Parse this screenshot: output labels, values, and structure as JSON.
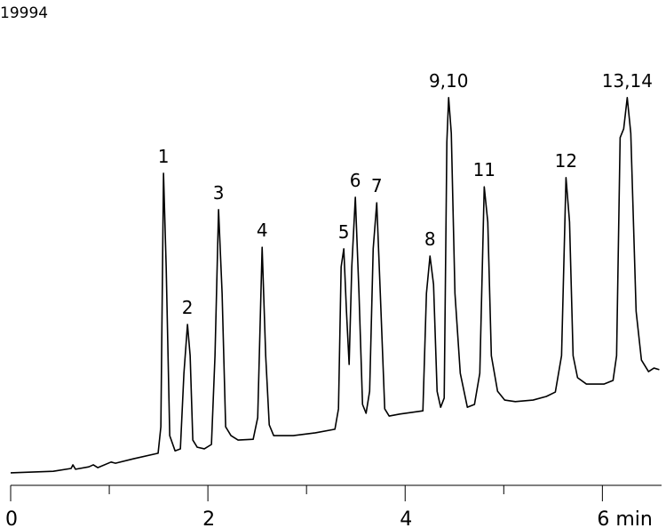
{
  "id_label": "19994",
  "chart_data": {
    "type": "line",
    "x": [
      0.0,
      0.432,
      0.613,
      0.631,
      0.658,
      0.793,
      0.838,
      0.883,
      1.018,
      1.063,
      1.243,
      1.495,
      1.523,
      1.55,
      1.577,
      1.613,
      1.667,
      1.721,
      1.757,
      1.793,
      1.82,
      1.847,
      1.892,
      1.964,
      2.036,
      2.072,
      2.108,
      2.144,
      2.18,
      2.234,
      2.306,
      2.459,
      2.505,
      2.55,
      2.586,
      2.622,
      2.667,
      2.865,
      3.09,
      3.288,
      3.324,
      3.351,
      3.378,
      3.405,
      3.432,
      3.459,
      3.495,
      3.532,
      3.568,
      3.604,
      3.64,
      3.676,
      3.712,
      3.748,
      3.793,
      3.838,
      3.946,
      4.18,
      4.216,
      4.252,
      4.288,
      4.324,
      4.36,
      4.396,
      4.423,
      4.441,
      4.468,
      4.505,
      4.559,
      4.631,
      4.703,
      4.757,
      4.802,
      4.838,
      4.874,
      4.937,
      5.009,
      5.117,
      5.297,
      5.432,
      5.523,
      5.586,
      5.631,
      5.667,
      5.703,
      5.748,
      5.838,
      6.018,
      6.108,
      6.144,
      6.18,
      6.216,
      6.252,
      6.288,
      6.342,
      6.396,
      6.468,
      6.523,
      6.577
    ],
    "series": [
      {
        "color": "#000000",
        "values": [
          2.9,
          3.3,
          4.0,
          4.9,
          3.8,
          4.4,
          4.9,
          4.2,
          5.6,
          5.3,
          6.4,
          7.8,
          14.4,
          77.8,
          54.4,
          12.2,
          8.4,
          8.9,
          27.8,
          40.0,
          32.2,
          11.1,
          9.3,
          8.9,
          10.0,
          32.2,
          68.7,
          47.8,
          14.4,
          12.2,
          11.1,
          11.3,
          16.7,
          59.3,
          32.2,
          14.9,
          12.2,
          12.2,
          12.9,
          13.8,
          18.9,
          54.4,
          58.9,
          43.3,
          30.0,
          54.4,
          71.8,
          47.8,
          20.0,
          17.8,
          23.3,
          58.9,
          70.4,
          47.8,
          18.9,
          17.1,
          17.6,
          18.4,
          47.8,
          57.1,
          50.0,
          23.3,
          19.3,
          21.6,
          85.6,
          96.7,
          87.8,
          47.8,
          27.8,
          19.3,
          20.0,
          27.8,
          74.4,
          65.6,
          32.2,
          23.3,
          21.1,
          20.7,
          21.1,
          22.0,
          23.1,
          32.2,
          76.7,
          65.6,
          32.2,
          26.7,
          25.1,
          25.1,
          26.0,
          32.2,
          86.7,
          88.9,
          96.7,
          87.8,
          43.3,
          31.1,
          28.2,
          29.1,
          28.7
        ]
      }
    ],
    "xlim": [
      0,
      6.6
    ],
    "ylim": [
      0,
      110
    ],
    "xticks": [
      0,
      2,
      4,
      {
        "value": 6,
        "label": "6 min"
      }
    ],
    "minor_xticks": [
      1,
      3,
      5
    ],
    "annotations": [
      {
        "text": "1",
        "x": 1.55,
        "y": 77.8
      },
      {
        "text": "2",
        "x": 1.793,
        "y": 40.0
      },
      {
        "text": "3",
        "x": 2.108,
        "y": 68.7
      },
      {
        "text": "4",
        "x": 2.55,
        "y": 59.3
      },
      {
        "text": "5",
        "x": 3.378,
        "y": 58.9
      },
      {
        "text": "6",
        "x": 3.495,
        "y": 71.8
      },
      {
        "text": "7",
        "x": 3.712,
        "y": 70.4
      },
      {
        "text": "8",
        "x": 4.252,
        "y": 57.1
      },
      {
        "text": "9,10",
        "x": 4.441,
        "y": 96.7
      },
      {
        "text": "11",
        "x": 4.802,
        "y": 74.4
      },
      {
        "text": "12",
        "x": 5.631,
        "y": 76.7
      },
      {
        "text": "13,14",
        "x": 6.252,
        "y": 96.7
      }
    ]
  }
}
